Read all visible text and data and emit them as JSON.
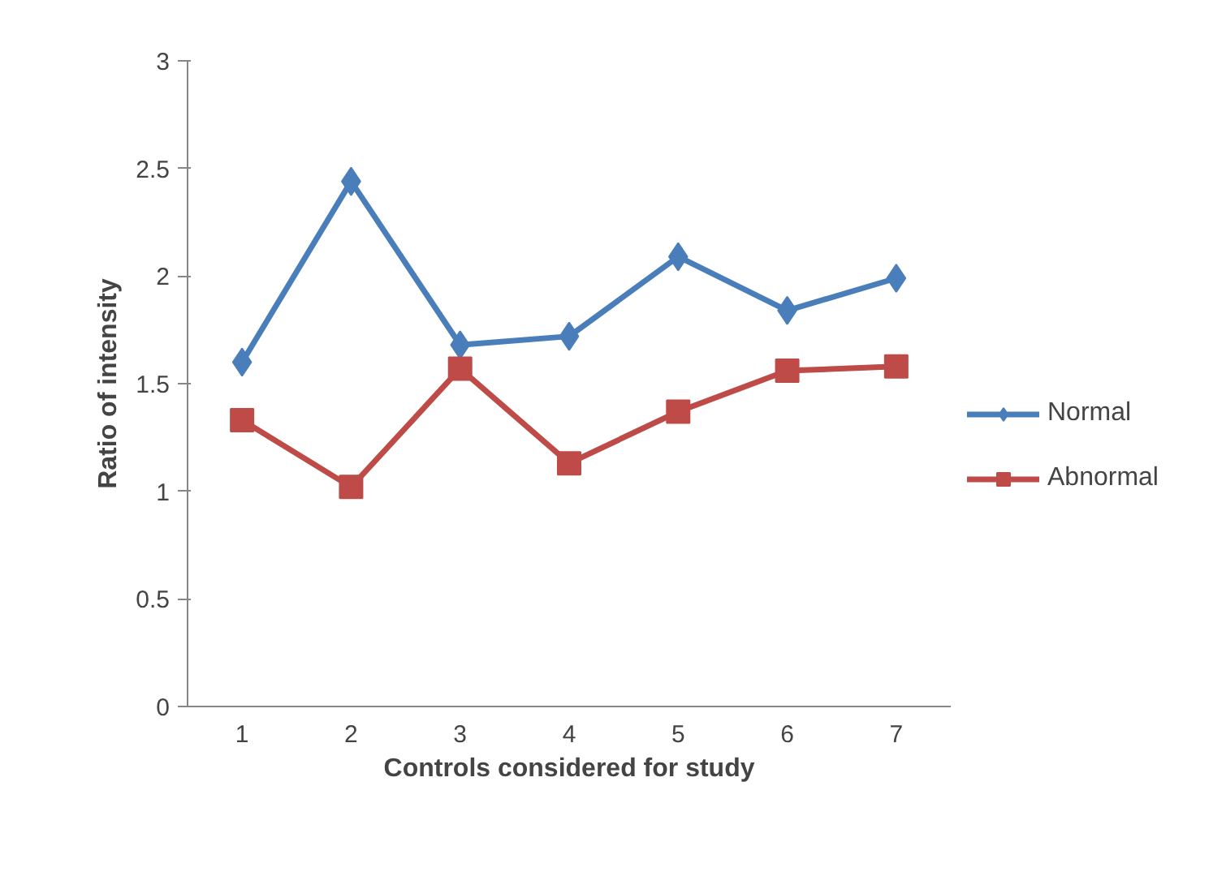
{
  "chart_data": {
    "type": "line",
    "xlabel": "Controls considered for study",
    "ylabel": "Ratio of intensity",
    "categories": [
      "1",
      "2",
      "3",
      "4",
      "5",
      "6",
      "7"
    ],
    "series": [
      {
        "name": "Normal",
        "color": "#4a7ebb",
        "marker": "diamond",
        "values": [
          1.6,
          2.44,
          1.68,
          1.72,
          2.09,
          1.84,
          1.99
        ]
      },
      {
        "name": "Abnormal",
        "color": "#be4b48",
        "marker": "square",
        "values": [
          1.33,
          1.02,
          1.57,
          1.13,
          1.37,
          1.56,
          1.58
        ]
      }
    ],
    "ylim": [
      0,
      3
    ],
    "yticks": [
      0,
      0.5,
      1,
      1.5,
      2,
      2.5,
      3
    ],
    "grid": false,
    "legend": "right",
    "line_style": "solid"
  }
}
